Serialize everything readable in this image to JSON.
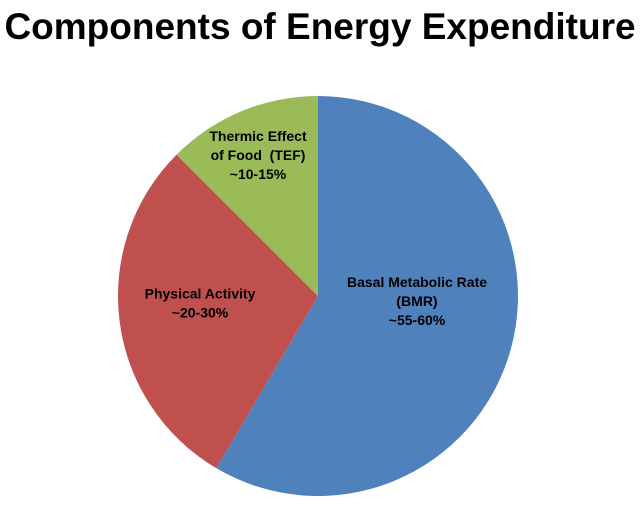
{
  "chart_data": {
    "type": "pie",
    "title": "Components of Energy Expenditure",
    "slices": [
      {
        "label_lines": [
          "Basal Metabolic Rate",
          "(BMR)",
          "~55-60%"
        ],
        "value": 58.5,
        "color": "#4F81BD"
      },
      {
        "label_lines": [
          "Physical Activity",
          "~20-30%"
        ],
        "value": 29,
        "color": "#C0504D"
      },
      {
        "label_lines": [
          "Thermic Effect",
          "of Food  (TEF)",
          "~10-15%"
        ],
        "value": 12.5,
        "color": "#9BBB59"
      }
    ],
    "start_angle_deg": 0,
    "direction": "clockwise",
    "legend": "none"
  }
}
